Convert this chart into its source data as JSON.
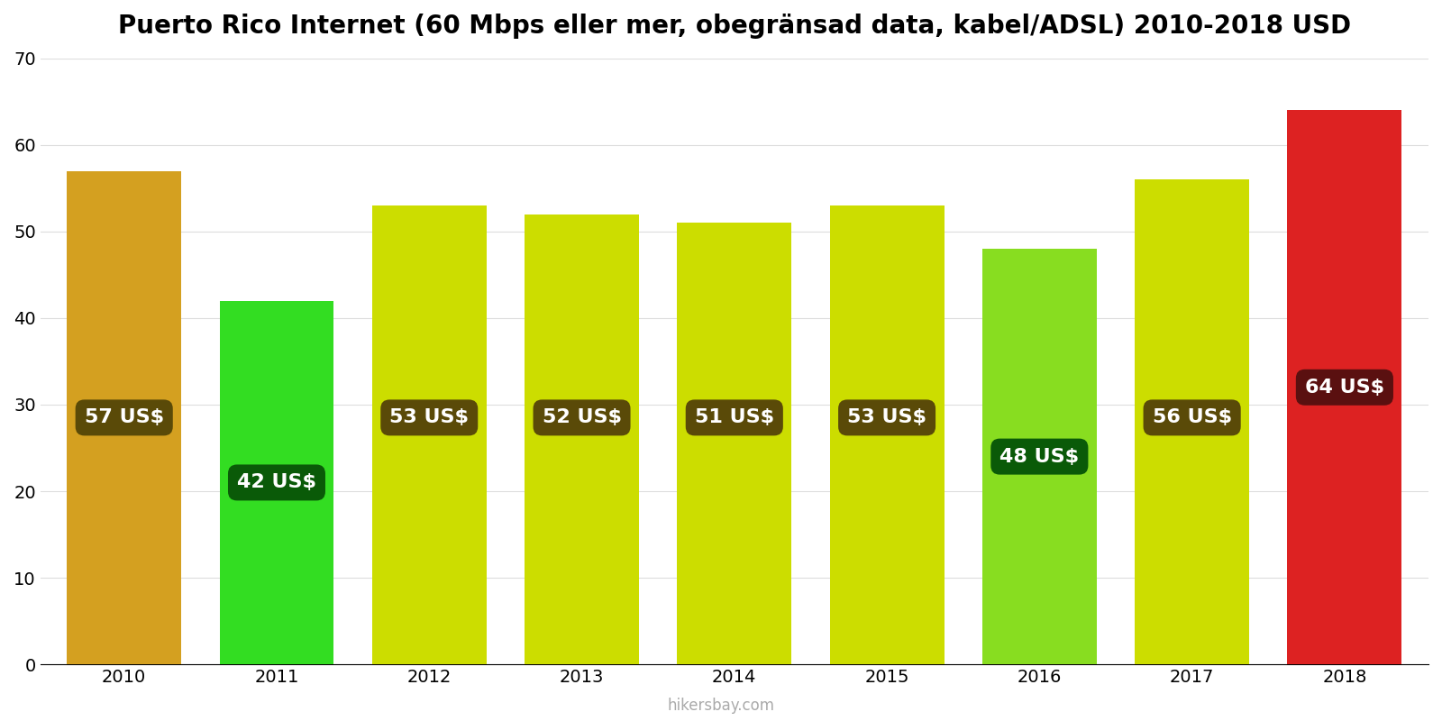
{
  "title": "Puerto Rico Internet (60 Mbps eller mer, obegränsad data, kabel/ADSL) 2010-2018 USD",
  "years": [
    2010,
    2011,
    2012,
    2013,
    2014,
    2015,
    2016,
    2017,
    2018
  ],
  "values": [
    57,
    42,
    53,
    52,
    51,
    53,
    48,
    56,
    64
  ],
  "bar_colors": [
    "#D4A020",
    "#33DD22",
    "#CCDD00",
    "#CCDD00",
    "#CCDD00",
    "#CCDD00",
    "#88DD20",
    "#CCDD00",
    "#DD2222"
  ],
  "label_bg_colors": [
    "#5A4A08",
    "#0A5A08",
    "#5A4A08",
    "#5A4A08",
    "#5A4A08",
    "#5A4A08",
    "#0A5A08",
    "#5A4A08",
    "#5A1010"
  ],
  "label_y_positions": [
    28.5,
    21,
    28.5,
    28.5,
    28.5,
    28.5,
    24,
    28.5,
    32
  ],
  "ylim": [
    0,
    70
  ],
  "yticks": [
    0,
    10,
    20,
    30,
    40,
    50,
    60,
    70
  ],
  "watermark": "hikersbay.com",
  "background_color": "#ffffff",
  "label_text_color": "#ffffff",
  "title_fontsize": 20,
  "tick_fontsize": 14,
  "label_fontsize": 16
}
